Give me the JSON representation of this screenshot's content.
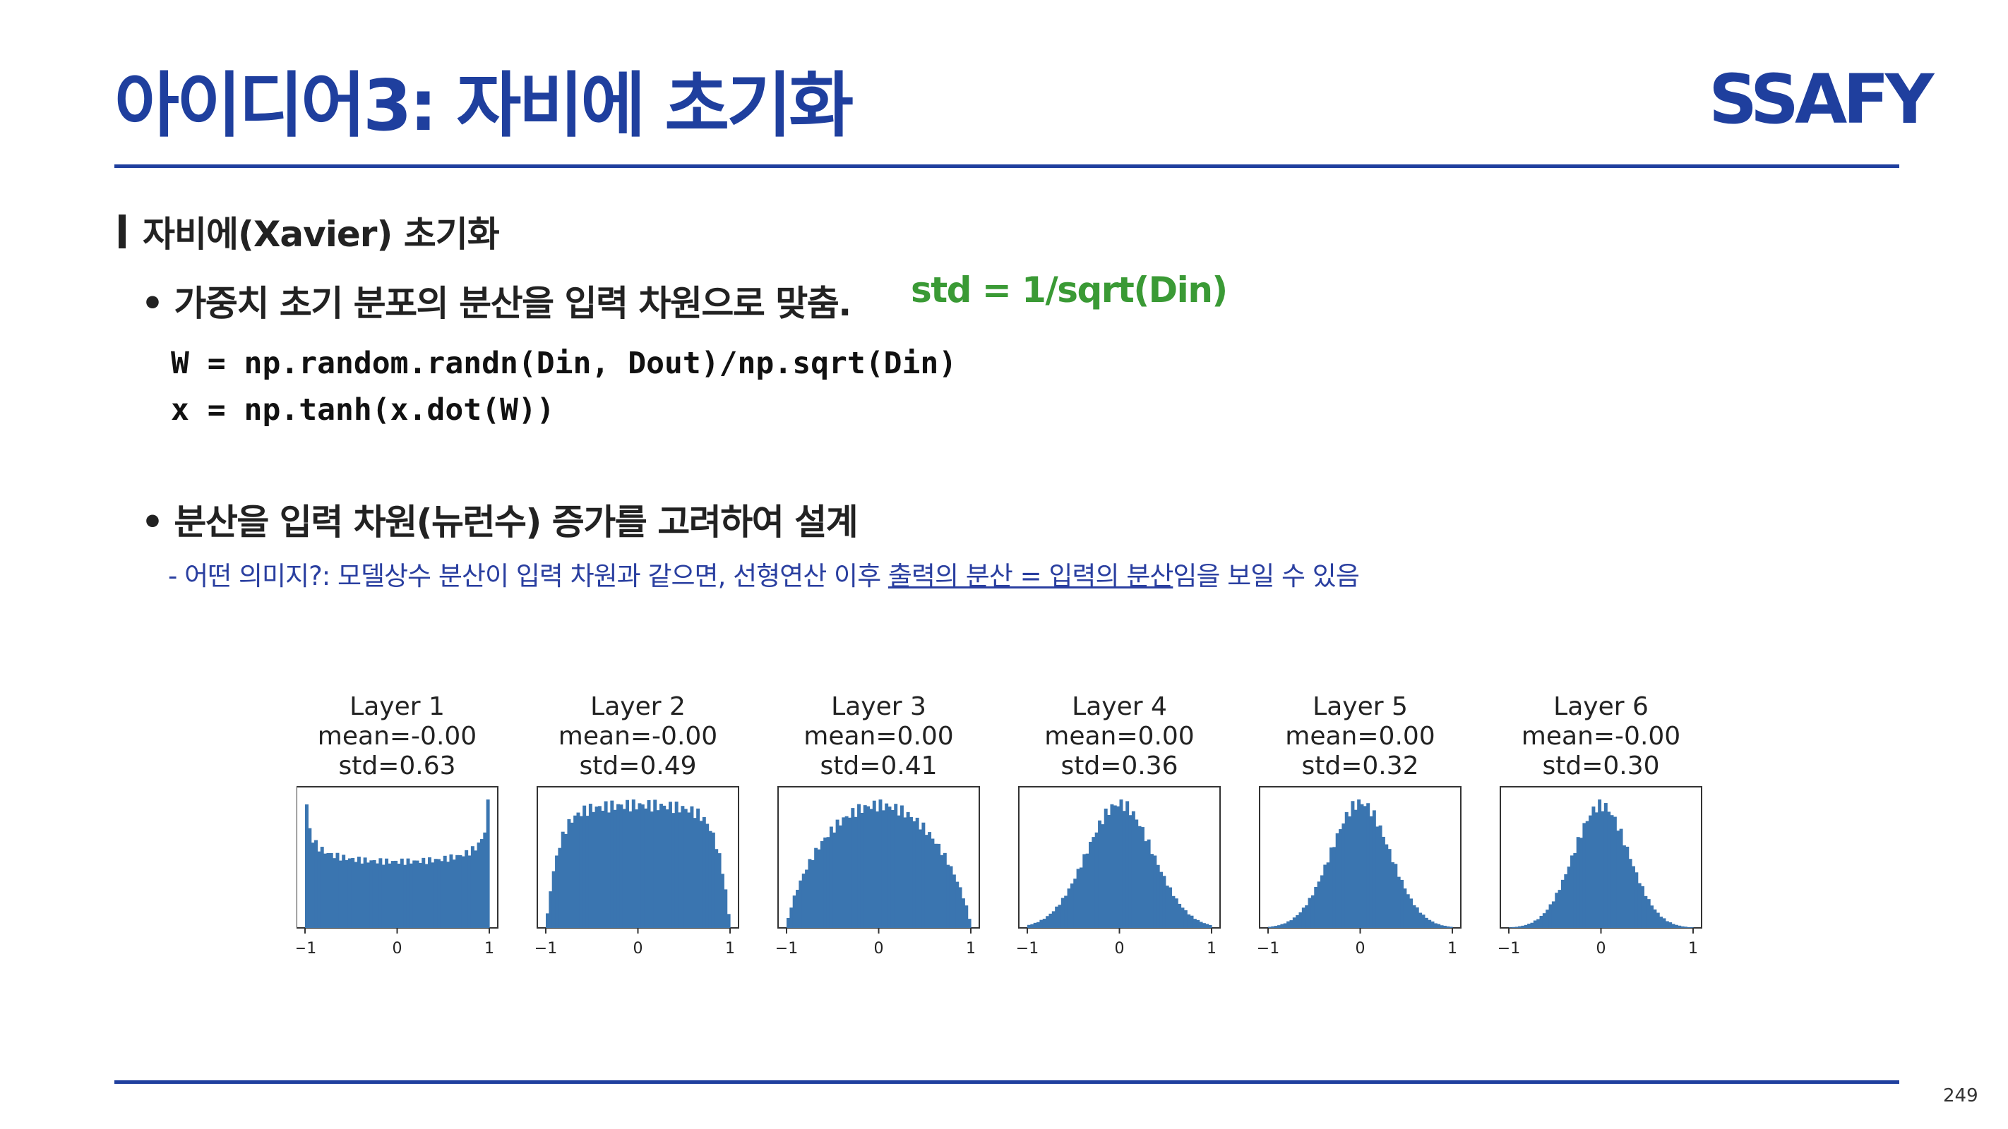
{
  "slide": {
    "title": "아이디어3: 자비에 초기화",
    "logo_text": "SSAFY",
    "section_heading": "자비에(Xavier) 초기화",
    "bullet1": "• 가중치 초기 분포의 분산을 입력 차원으로 맞춤.",
    "formula": "std = 1/sqrt(Din)",
    "code_line1": "W = np.random.randn(Din, Dout)/np.sqrt(Din)",
    "code_line2": "x = np.tanh(x.dot(W))",
    "bullet2": "• 분산을 입력 차원(뉴런수) 증가를 고려하여 설계",
    "sub_prefix": "- 어떤 의미지?: 모델상수 분산이 입력 차원과 같으면, 선형연산 이후 ",
    "sub_underlined": "출력의 분산 = 입력의 분산",
    "sub_suffix": "임을 보일 수 있음",
    "page_number": "249"
  },
  "colors": {
    "title": "#1f3f9e",
    "formula": "#3a9a35",
    "bar": "#3a75b0",
    "logo": "#1f3f9e"
  },
  "chart_data": [
    {
      "type": "bar",
      "title": "Layer 1",
      "subtitle": [
        "mean=-0.00",
        "std=0.63"
      ],
      "xticks": [
        "-1",
        "0",
        "1"
      ],
      "xlim": [
        -1,
        1
      ],
      "std": 0.63,
      "shape": "u"
    },
    {
      "type": "bar",
      "title": "Layer 2",
      "subtitle": [
        "mean=-0.00",
        "std=0.49"
      ],
      "xticks": [
        "-1",
        "0",
        "1"
      ],
      "xlim": [
        -1,
        1
      ],
      "std": 0.49,
      "shape": "flat"
    },
    {
      "type": "bar",
      "title": "Layer 3",
      "subtitle": [
        "mean=0.00",
        "std=0.41"
      ],
      "xticks": [
        "-1",
        "0",
        "1"
      ],
      "xlim": [
        -1,
        1
      ],
      "std": 0.41,
      "shape": "dome"
    },
    {
      "type": "bar",
      "title": "Layer 4",
      "subtitle": [
        "mean=0.00",
        "std=0.36"
      ],
      "xticks": [
        "-1",
        "0",
        "1"
      ],
      "xlim": [
        -1,
        1
      ],
      "std": 0.36,
      "shape": "bell"
    },
    {
      "type": "bar",
      "title": "Layer 5",
      "subtitle": [
        "mean=0.00",
        "std=0.32"
      ],
      "xticks": [
        "-1",
        "0",
        "1"
      ],
      "xlim": [
        -1,
        1
      ],
      "std": 0.32,
      "shape": "bell"
    },
    {
      "type": "bar",
      "title": "Layer 6",
      "subtitle": [
        "mean=-0.00",
        "std=0.30"
      ],
      "xticks": [
        "-1",
        "0",
        "1"
      ],
      "xlim": [
        -1,
        1
      ],
      "std": 0.3,
      "shape": "bell"
    }
  ]
}
